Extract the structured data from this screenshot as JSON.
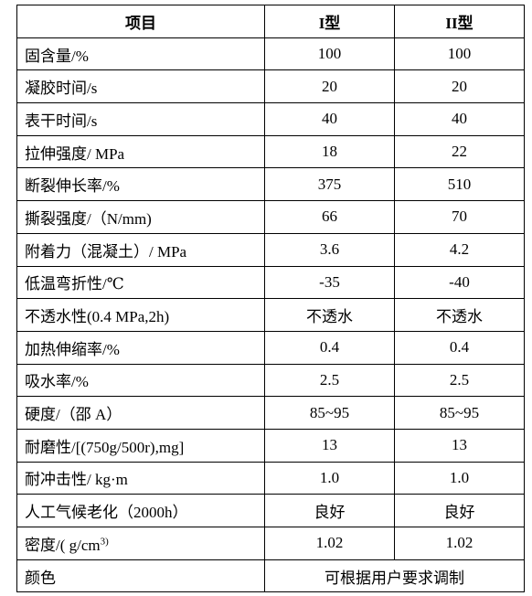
{
  "table": {
    "header": [
      "项目",
      "I型",
      "II型"
    ],
    "rows": [
      [
        "固含量/%",
        "100",
        "100"
      ],
      [
        "凝胶时间/s",
        "20",
        "20"
      ],
      [
        "表干时间/s",
        "40",
        "40"
      ],
      [
        "拉伸强度/ MPa",
        "18",
        "22"
      ],
      [
        "断裂伸长率/%",
        "375",
        "510"
      ],
      [
        "撕裂强度/（N/mm)",
        "66",
        "70"
      ],
      [
        "附着力（混凝土）/ MPa",
        "3.6",
        "4.2"
      ],
      [
        "低温弯折性/℃",
        "-35",
        "-40"
      ],
      [
        "不透水性(0.4 MPa,2h)",
        "不透水",
        "不透水"
      ],
      [
        "加热伸缩率/%",
        "0.4",
        "0.4"
      ],
      [
        "吸水率/%",
        "2.5",
        "2.5"
      ],
      [
        "硬度/（邵 A）",
        "85~95",
        "85~95"
      ],
      [
        "耐磨性/[(750g/500r),mg]",
        "13",
        "13"
      ],
      [
        "耐冲击性/ kg·m",
        "1.0",
        "1.0"
      ],
      [
        "人工气候老化（2000h）",
        "良好",
        "良好"
      ],
      [
        {
          "text": "密度/( g/cm",
          "sup": "3)"
        },
        "1.02",
        "1.02"
      ],
      [
        "颜色",
        "可根据用户要求调制"
      ]
    ]
  }
}
